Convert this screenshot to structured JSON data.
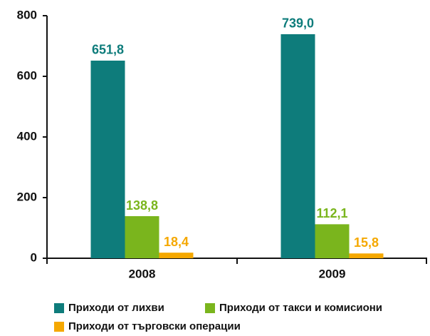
{
  "chart_data": {
    "type": "bar",
    "categories": [
      "2008",
      "2009"
    ],
    "series": [
      {
        "name": "Приходи от лихви",
        "color": "#0e7c7b",
        "values": [
          651.8,
          739.0
        ],
        "value_labels": [
          "651,8",
          "739,0"
        ]
      },
      {
        "name": "Приходи от такси и комисиони",
        "color": "#7ab51d",
        "values": [
          138.8,
          112.1
        ],
        "value_labels": [
          "138,8",
          "112,1"
        ]
      },
      {
        "name": "Приходи от търговски операции",
        "color": "#f5a800",
        "values": [
          18.4,
          15.8
        ],
        "value_labels": [
          "18,4",
          "15,8"
        ]
      }
    ],
    "ylim": [
      0,
      800
    ],
    "yticks": [
      0,
      200,
      400,
      600,
      800
    ]
  }
}
